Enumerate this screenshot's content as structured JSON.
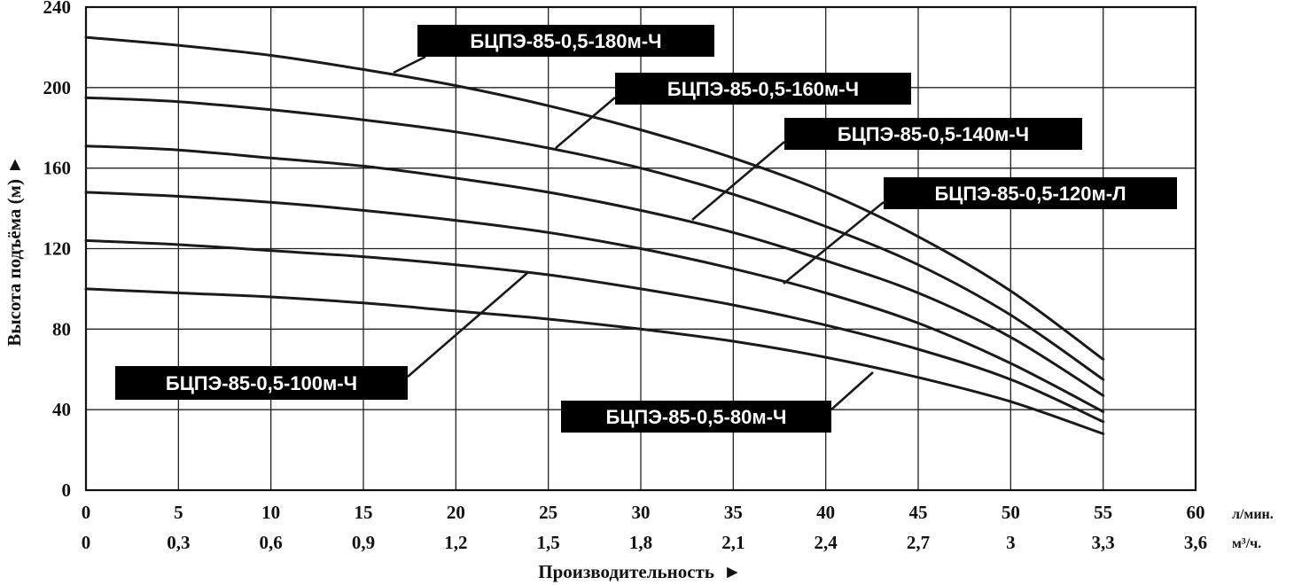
{
  "chart_data": {
    "type": "line",
    "ylabel": "Высота подъёма (м)",
    "ylabel_arrow": "►",
    "xlabel": "Производительность",
    "xlabel_arrow": "►",
    "x_unit_primary": "л/мин.",
    "x_unit_secondary": "м³/ч.",
    "xlim": [
      0,
      60
    ],
    "ylim": [
      0,
      240
    ],
    "grid": true,
    "x_ticks_primary": [
      "0",
      "5",
      "10",
      "15",
      "20",
      "25",
      "30",
      "35",
      "40",
      "45",
      "50",
      "55",
      "60"
    ],
    "x_ticks_secondary": [
      "0",
      "0,3",
      "0,6",
      "0,9",
      "1,2",
      "1,5",
      "1,8",
      "2,1",
      "2,4",
      "2,7",
      "3",
      "3,3",
      "3,6"
    ],
    "y_ticks": [
      "0",
      "40",
      "80",
      "120",
      "160",
      "200",
      "240"
    ],
    "x": [
      0,
      5,
      10,
      15,
      20,
      25,
      30,
      35,
      40,
      45,
      50,
      55
    ],
    "series": [
      {
        "name": "БЦПЭ-85-0,5-180м-Ч",
        "values": [
          225,
          221,
          216,
          209,
          201,
          191,
          179,
          165,
          148,
          126,
          99,
          65
        ]
      },
      {
        "name": "БЦПЭ-85-0,5-160м-Ч",
        "values": [
          195,
          193,
          189,
          184,
          178,
          170,
          160,
          147,
          131,
          112,
          87,
          55
        ]
      },
      {
        "name": "БЦПЭ-85-0,5-140м-Ч",
        "values": [
          171,
          169,
          165,
          161,
          155,
          148,
          139,
          128,
          114,
          98,
          76,
          47
        ]
      },
      {
        "name": "БЦПЭ-85-0,5-120м-Л",
        "values": [
          148,
          146,
          143,
          139,
          134,
          128,
          120,
          110,
          98,
          83,
          63,
          39
        ]
      },
      {
        "name": "БЦПЭ-85-0,5-100м-Ч",
        "values": [
          124,
          122,
          119,
          116,
          112,
          107,
          100,
          92,
          82,
          70,
          55,
          34
        ]
      },
      {
        "name": "БЦПЭ-85-0,5-80м-Ч",
        "values": [
          100,
          98,
          96,
          93,
          89,
          85,
          80,
          74,
          66,
          56,
          44,
          28
        ]
      }
    ]
  }
}
